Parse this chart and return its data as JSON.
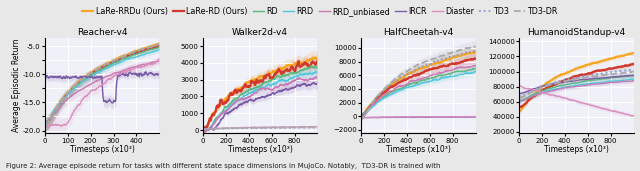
{
  "legend_entries": [
    {
      "label": "LaRe-RRDu (Ours)",
      "color": "#F5A623",
      "linestyle": "-",
      "linewidth": 1.6
    },
    {
      "label": "LaRe-RD (Ours)",
      "color": "#D0392B",
      "linestyle": "-",
      "linewidth": 1.6
    },
    {
      "label": "RD",
      "color": "#5CB87E",
      "linestyle": "-",
      "linewidth": 1.0
    },
    {
      "label": "RRD",
      "color": "#4EC8E0",
      "linestyle": "-",
      "linewidth": 1.0
    },
    {
      "label": "RRD_unbiased",
      "color": "#C97AB2",
      "linestyle": "-",
      "linewidth": 1.0
    },
    {
      "label": "IRCR",
      "color": "#7B5CA7",
      "linestyle": "-",
      "linewidth": 1.0
    },
    {
      "label": "Diaster",
      "color": "#D98EC0",
      "linestyle": "-",
      "linewidth": 1.0
    },
    {
      "label": "TD3",
      "color": "#8899CC",
      "linestyle": ":",
      "linewidth": 1.3
    },
    {
      "label": "TD3-DR",
      "color": "#AAAAAA",
      "linestyle": "--",
      "linewidth": 1.3
    }
  ],
  "background_color": "#F0F0F8",
  "grid_color": "#FFFFFF",
  "fig_bg": "#E8E8E8",
  "title_fontsize": 6.5,
  "label_fontsize": 5.5,
  "tick_fontsize": 5.0,
  "legend_fontsize": 5.8
}
